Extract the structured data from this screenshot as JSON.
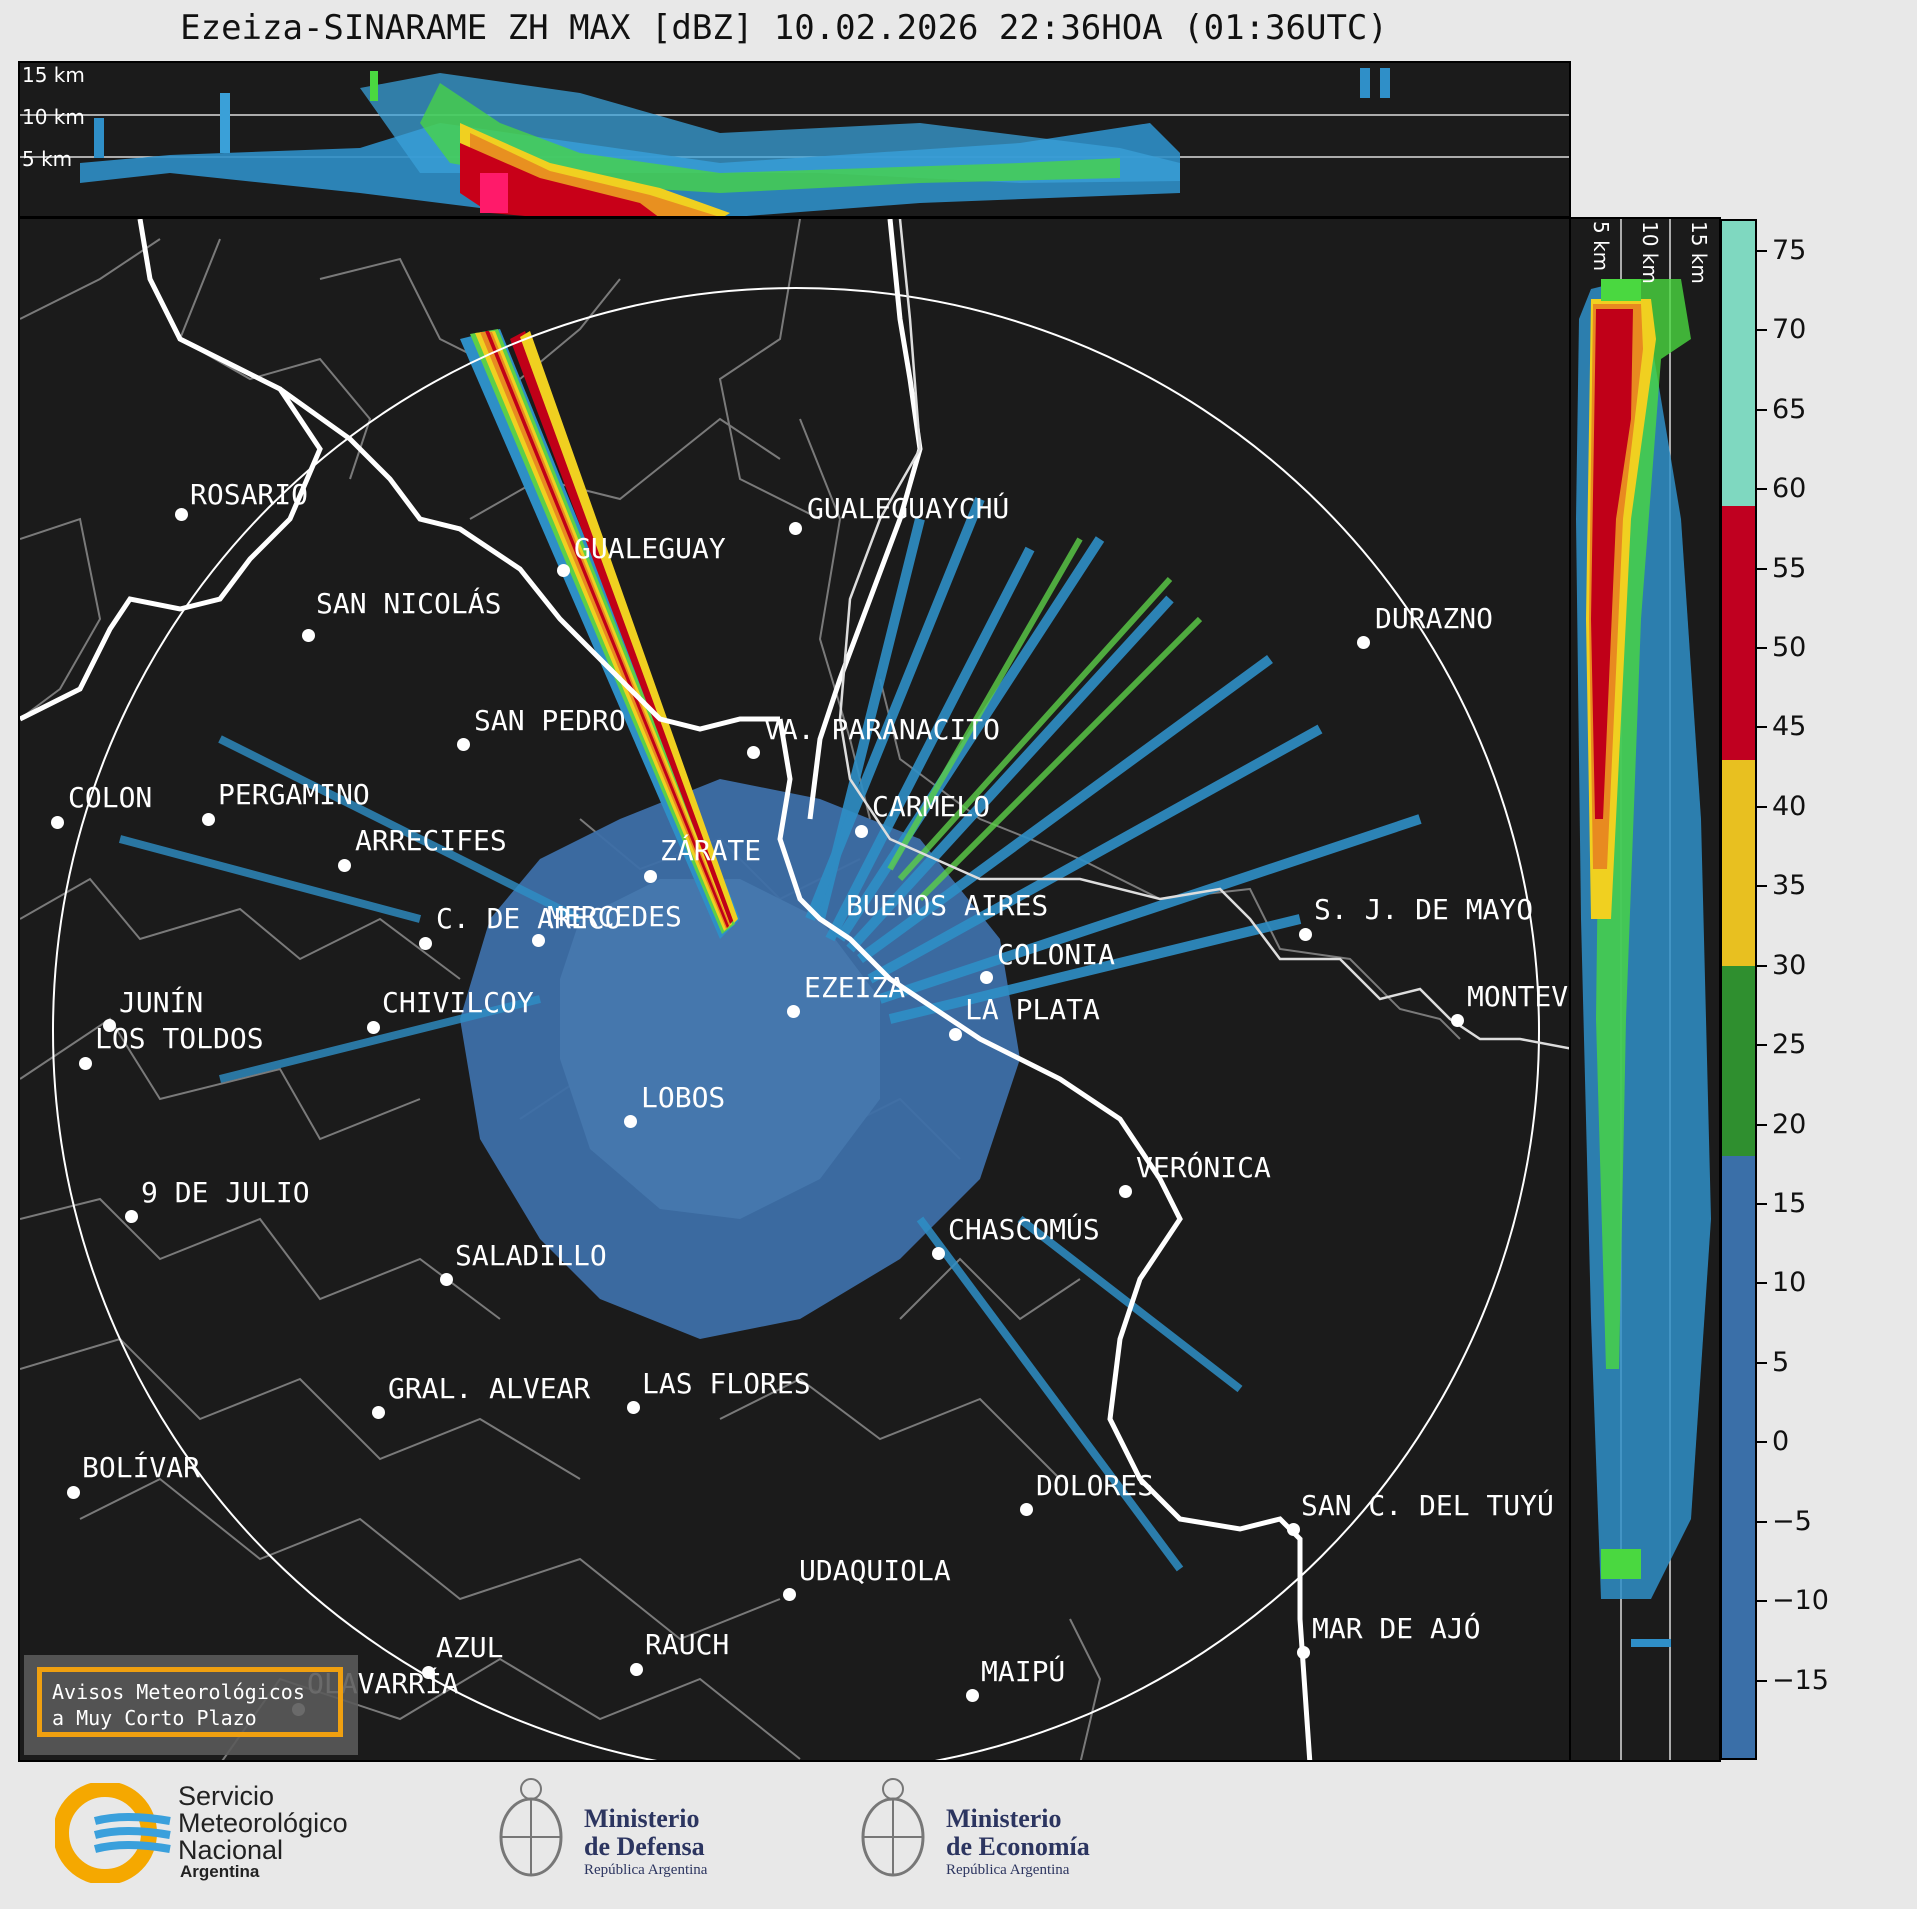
{
  "title": "Ezeiza-SINARAME ZH MAX [dBZ] 10.02.2026 22:36HOA (01:36UTC)",
  "top_panel": {
    "altitude_labels": [
      "15 km",
      "10 km",
      "5 km"
    ]
  },
  "side_panel": {
    "altitude_labels": [
      "5 km",
      "10 km",
      "15 km"
    ]
  },
  "cities": [
    {
      "name": "ROSARIO"
    },
    {
      "name": "GUALEGUAYCHÚ"
    },
    {
      "name": "GUALEGUAY"
    },
    {
      "name": "SAN NICOLÁS"
    },
    {
      "name": "DURAZNO"
    },
    {
      "name": "SAN PEDRO"
    },
    {
      "name": "VA. PARANACITO"
    },
    {
      "name": "COLON"
    },
    {
      "name": "PERGAMINO"
    },
    {
      "name": "CARMELO"
    },
    {
      "name": "ARRECIFES"
    },
    {
      "name": "ZÁRATE"
    },
    {
      "name": "S. J. DE MAYO"
    },
    {
      "name": "C. DE ARECO"
    },
    {
      "name": "COLONIA"
    },
    {
      "name": "JUNÍN"
    },
    {
      "name": "BUENOS AIRES"
    },
    {
      "name": "MERCEDES"
    },
    {
      "name": "EZEIZA"
    },
    {
      "name": "MONTEV"
    },
    {
      "name": "CHIVILCOY"
    },
    {
      "name": "LA PLATA"
    },
    {
      "name": "LOS TOLDOS"
    },
    {
      "name": "LOBOS"
    },
    {
      "name": "VERÓNICA"
    },
    {
      "name": "9 DE JULIO"
    },
    {
      "name": "CHASCOMÚS"
    },
    {
      "name": "SALADILLO"
    },
    {
      "name": "GRAL. ALVEAR"
    },
    {
      "name": "LAS FLORES"
    },
    {
      "name": "BOLÍVAR"
    },
    {
      "name": "DOLORES"
    },
    {
      "name": "SAN C. DEL TUYÚ"
    },
    {
      "name": "UDAQUIOLA"
    },
    {
      "name": "MAR DE AJÓ"
    },
    {
      "name": "AZUL"
    },
    {
      "name": "RAUCH"
    },
    {
      "name": "MAIPÚ"
    },
    {
      "name": "OLAVARRÍA"
    }
  ],
  "colorbar": {
    "unit": "dBZ",
    "range": [
      -20,
      77
    ],
    "tick_labels": [
      "75",
      "70",
      "65",
      "60",
      "55",
      "50",
      "45",
      "40",
      "35",
      "30",
      "25",
      "20",
      "15",
      "10",
      "5",
      "0",
      "−5",
      "−10",
      "−15"
    ],
    "bands": [
      {
        "from": -20,
        "to": 18,
        "color": "#3a6fa8"
      },
      {
        "from": 18,
        "to": 30,
        "color": "#2f8f2f"
      },
      {
        "from": 30,
        "to": 43,
        "color": "#e8c020"
      },
      {
        "from": 43,
        "to": 59,
        "color": "#c00020"
      },
      {
        "from": 59,
        "to": 77,
        "color": "#7fd8c0"
      }
    ]
  },
  "avisos": {
    "line1": "Avisos Meteorológicos",
    "line2": "a Muy Corto Plazo"
  },
  "footer": {
    "smn": {
      "line1": "Servicio",
      "line2": "Meteorológico",
      "line3": "Nacional",
      "line4": "Argentina"
    },
    "defensa": {
      "line1": "Ministerio",
      "line2": "de Defensa",
      "line3": "República Argentina"
    },
    "economia": {
      "line1": "Ministerio",
      "line2": "de Economía",
      "line3": "República Argentina"
    }
  }
}
